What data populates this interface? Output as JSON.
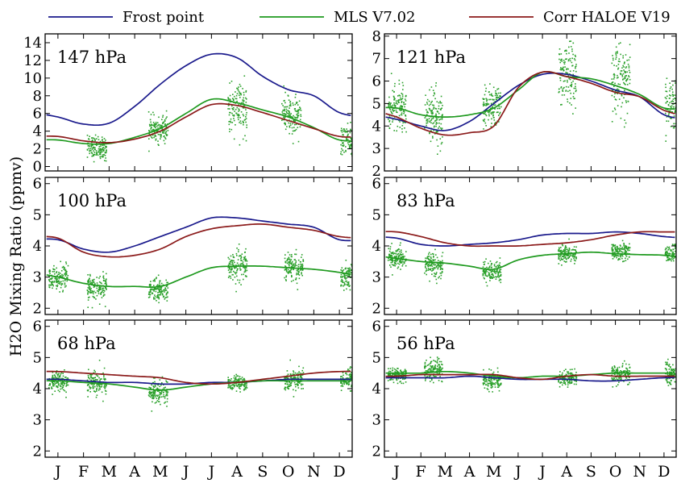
{
  "colors": {
    "frost_point": "#1a1a8c",
    "mls": "#1f9a1f",
    "haloe": "#8b1a1a",
    "mls_scatter": "#2aa02a"
  },
  "legend": [
    {
      "key": "frost_point",
      "label": "Frost point"
    },
    {
      "key": "mls",
      "label": "MLS V7.02"
    },
    {
      "key": "haloe",
      "label": "Corr HALOE V19"
    }
  ],
  "ylabel": "H2O Mixing Ratio (ppmv)",
  "months": [
    "J",
    "F",
    "M",
    "A",
    "M",
    "J",
    "J",
    "A",
    "S",
    "O",
    "N",
    "D"
  ],
  "chart_data": [
    {
      "type": "line",
      "label": "147 hPa",
      "ylim": [
        -0.5,
        15
      ],
      "yticks": [
        0,
        2,
        4,
        6,
        8,
        10,
        12,
        14
      ],
      "x": [
        1,
        2,
        3,
        4,
        5,
        6,
        7,
        8,
        9,
        10,
        11,
        12
      ],
      "series": [
        {
          "name": "Frost point",
          "key": "frost_point",
          "values": [
            5.6,
            4.8,
            4.9,
            6.8,
            9.3,
            11.4,
            12.7,
            12.3,
            10.2,
            8.7,
            8.0,
            6.1
          ]
        },
        {
          "name": "MLS V7.02",
          "key": "mls",
          "values": [
            3.0,
            2.6,
            2.6,
            3.3,
            4.3,
            6.0,
            7.6,
            7.2,
            6.4,
            5.6,
            4.4,
            3.0
          ]
        },
        {
          "name": "Corr HALOE V19",
          "key": "haloe",
          "values": [
            3.4,
            2.9,
            2.7,
            3.1,
            4.0,
            5.6,
            7.0,
            6.9,
            6.1,
            5.2,
            4.3,
            3.4
          ]
        }
      ],
      "scatter_clusters": [
        {
          "x": 2.5,
          "center": 2.2,
          "spread": 1.2
        },
        {
          "x": 4.9,
          "center": 4.3,
          "spread": 1.3
        },
        {
          "x": 8.0,
          "center": 6.5,
          "spread": 2.5
        },
        {
          "x": 10.1,
          "center": 5.8,
          "spread": 2.0
        },
        {
          "x": 12.4,
          "center": 3.0,
          "spread": 1.5
        }
      ]
    },
    {
      "type": "line",
      "label": "121 hPa",
      "ylim": [
        2,
        8.1
      ],
      "yticks": [
        2,
        3,
        4,
        5,
        6,
        7,
        8
      ],
      "x": [
        1,
        2,
        3,
        4,
        5,
        6,
        7,
        8,
        9,
        10,
        11,
        12
      ],
      "series": [
        {
          "name": "Frost point",
          "key": "frost_point",
          "values": [
            4.3,
            4.0,
            3.8,
            4.2,
            5.0,
            5.8,
            6.3,
            6.3,
            6.0,
            5.6,
            5.3,
            4.5
          ]
        },
        {
          "name": "MLS V7.02",
          "key": "mls",
          "values": [
            4.8,
            4.5,
            4.4,
            4.5,
            4.8,
            5.6,
            6.4,
            6.2,
            6.1,
            5.8,
            5.4,
            4.8
          ]
        },
        {
          "name": "Corr HALOE V19",
          "key": "haloe",
          "values": [
            4.4,
            3.9,
            3.6,
            3.7,
            4.0,
            5.7,
            6.4,
            6.2,
            5.9,
            5.5,
            5.3,
            4.7
          ]
        }
      ],
      "scatter_clusters": [
        {
          "x": 1.0,
          "center": 4.8,
          "spread": 0.9
        },
        {
          "x": 2.5,
          "center": 4.5,
          "spread": 1.1
        },
        {
          "x": 4.9,
          "center": 4.8,
          "spread": 0.9
        },
        {
          "x": 8.0,
          "center": 6.3,
          "spread": 1.2
        },
        {
          "x": 10.2,
          "center": 6.0,
          "spread": 1.4
        },
        {
          "x": 12.4,
          "center": 5.0,
          "spread": 0.9
        }
      ]
    },
    {
      "type": "line",
      "label": "100 hPa",
      "ylim": [
        1.8,
        6.2
      ],
      "yticks": [
        2,
        3,
        4,
        5,
        6
      ],
      "x": [
        1,
        2,
        3,
        4,
        5,
        6,
        7,
        8,
        9,
        10,
        11,
        12
      ],
      "series": [
        {
          "name": "Frost point",
          "key": "frost_point",
          "values": [
            4.2,
            3.9,
            3.8,
            4.0,
            4.3,
            4.6,
            4.9,
            4.9,
            4.8,
            4.7,
            4.6,
            4.2
          ]
        },
        {
          "name": "MLS V7.02",
          "key": "mls",
          "values": [
            3.0,
            2.8,
            2.7,
            2.7,
            2.7,
            3.0,
            3.3,
            3.35,
            3.35,
            3.3,
            3.25,
            3.15
          ]
        },
        {
          "name": "Corr HALOE V19",
          "key": "haloe",
          "values": [
            4.25,
            3.8,
            3.65,
            3.7,
            3.9,
            4.3,
            4.55,
            4.65,
            4.7,
            4.6,
            4.5,
            4.3
          ]
        }
      ],
      "scatter_clusters": [
        {
          "x": 1.0,
          "center": 3.0,
          "spread": 0.35
        },
        {
          "x": 2.5,
          "center": 2.65,
          "spread": 0.45
        },
        {
          "x": 4.9,
          "center": 2.6,
          "spread": 0.35
        },
        {
          "x": 8.0,
          "center": 3.3,
          "spread": 0.45
        },
        {
          "x": 10.2,
          "center": 3.35,
          "spread": 0.4
        },
        {
          "x": 12.4,
          "center": 3.1,
          "spread": 0.35
        }
      ]
    },
    {
      "type": "line",
      "label": "83 hPa",
      "ylim": [
        1.8,
        6.2
      ],
      "yticks": [
        2,
        3,
        4,
        5,
        6
      ],
      "x": [
        1,
        2,
        3,
        4,
        5,
        6,
        7,
        8,
        9,
        10,
        11,
        12
      ],
      "series": [
        {
          "name": "Frost point",
          "key": "frost_point",
          "values": [
            4.25,
            4.05,
            4.0,
            4.05,
            4.1,
            4.2,
            4.35,
            4.4,
            4.4,
            4.45,
            4.4,
            4.3
          ]
        },
        {
          "name": "MLS V7.02",
          "key": "mls",
          "values": [
            3.6,
            3.5,
            3.45,
            3.35,
            3.25,
            3.55,
            3.7,
            3.75,
            3.8,
            3.75,
            3.72,
            3.7
          ]
        },
        {
          "name": "Corr HALOE V19",
          "key": "haloe",
          "values": [
            4.45,
            4.3,
            4.1,
            4.0,
            4.0,
            4.0,
            4.05,
            4.1,
            4.2,
            4.35,
            4.45,
            4.45
          ]
        }
      ],
      "scatter_clusters": [
        {
          "x": 1.0,
          "center": 3.65,
          "spread": 0.3
        },
        {
          "x": 2.5,
          "center": 3.4,
          "spread": 0.35
        },
        {
          "x": 4.9,
          "center": 3.2,
          "spread": 0.3
        },
        {
          "x": 8.0,
          "center": 3.75,
          "spread": 0.25
        },
        {
          "x": 10.2,
          "center": 3.85,
          "spread": 0.25
        },
        {
          "x": 12.4,
          "center": 3.75,
          "spread": 0.25
        }
      ]
    },
    {
      "type": "line",
      "label": "68 hPa",
      "ylim": [
        1.8,
        6.2
      ],
      "yticks": [
        2,
        3,
        4,
        5,
        6
      ],
      "x": [
        1,
        2,
        3,
        4,
        5,
        6,
        7,
        8,
        9,
        10,
        11,
        12
      ],
      "series": [
        {
          "name": "Frost point",
          "key": "frost_point",
          "values": [
            4.3,
            4.25,
            4.2,
            4.2,
            4.15,
            4.15,
            4.2,
            4.2,
            4.25,
            4.3,
            4.3,
            4.3
          ]
        },
        {
          "name": "MLS V7.02",
          "key": "mls",
          "values": [
            4.25,
            4.2,
            4.15,
            4.05,
            3.95,
            4.05,
            4.15,
            4.2,
            4.25,
            4.25,
            4.25,
            4.25
          ]
        },
        {
          "name": "Corr HALOE V19",
          "key": "haloe",
          "values": [
            4.55,
            4.5,
            4.45,
            4.4,
            4.35,
            4.2,
            4.15,
            4.2,
            4.3,
            4.4,
            4.5,
            4.55
          ]
        }
      ],
      "scatter_clusters": [
        {
          "x": 1.0,
          "center": 4.25,
          "spread": 0.3
        },
        {
          "x": 2.5,
          "center": 4.2,
          "spread": 0.35
        },
        {
          "x": 4.9,
          "center": 3.9,
          "spread": 0.35
        },
        {
          "x": 8.0,
          "center": 4.2,
          "spread": 0.2
        },
        {
          "x": 10.2,
          "center": 4.3,
          "spread": 0.35
        },
        {
          "x": 12.4,
          "center": 4.3,
          "spread": 0.3
        }
      ]
    },
    {
      "type": "line",
      "label": "56 hPa",
      "ylim": [
        1.8,
        6.2
      ],
      "yticks": [
        2,
        3,
        4,
        5,
        6
      ],
      "x": [
        1,
        2,
        3,
        4,
        5,
        6,
        7,
        8,
        9,
        10,
        11,
        12
      ],
      "series": [
        {
          "name": "Frost point",
          "key": "frost_point",
          "values": [
            4.35,
            4.35,
            4.35,
            4.4,
            4.35,
            4.3,
            4.3,
            4.3,
            4.25,
            4.25,
            4.3,
            4.35
          ]
        },
        {
          "name": "MLS V7.02",
          "key": "mls",
          "values": [
            4.5,
            4.5,
            4.55,
            4.5,
            4.4,
            4.35,
            4.4,
            4.4,
            4.45,
            4.5,
            4.5,
            4.5
          ]
        },
        {
          "name": "Corr HALOE V19",
          "key": "haloe",
          "values": [
            4.4,
            4.45,
            4.45,
            4.45,
            4.45,
            4.35,
            4.3,
            4.4,
            4.45,
            4.4,
            4.4,
            4.4
          ]
        }
      ],
      "scatter_clusters": [
        {
          "x": 1.0,
          "center": 4.45,
          "spread": 0.2
        },
        {
          "x": 2.5,
          "center": 4.6,
          "spread": 0.3
        },
        {
          "x": 4.9,
          "center": 4.3,
          "spread": 0.25
        },
        {
          "x": 8.0,
          "center": 4.35,
          "spread": 0.2
        },
        {
          "x": 10.2,
          "center": 4.5,
          "spread": 0.3
        },
        {
          "x": 12.4,
          "center": 4.5,
          "spread": 0.3
        }
      ]
    }
  ]
}
